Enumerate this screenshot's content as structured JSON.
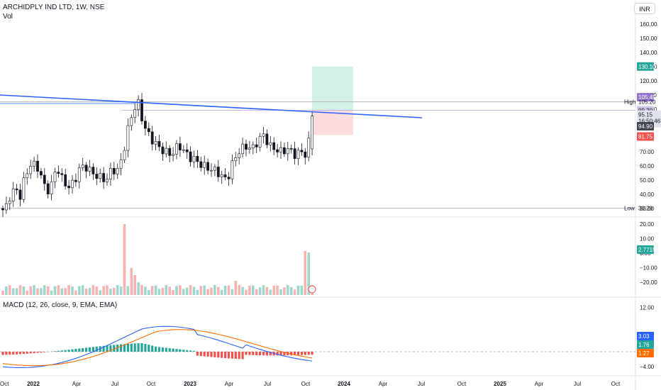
{
  "header": {
    "title": "ARCHIDPLY IND LTD, 1W, NSE",
    "vol_label": "Vol",
    "currency_button": "INR"
  },
  "macd": {
    "label": "MACD (12, 26, close, 9, EMA, EMA)"
  },
  "price_axis": {
    "ticks": [
      "160.00",
      "150.00",
      "140.00",
      "130.00",
      "120.00",
      "110.00",
      "100.00",
      "90.00",
      "80.00",
      "70.00",
      "60.00",
      "50.00",
      "40.00",
      "30.00"
    ]
  },
  "volume_axis": {
    "ticks": [
      "20.00",
      "10.00",
      "0.00",
      "−10.00",
      "−20.00"
    ]
  },
  "macd_axis": {
    "ticks": [
      "12.00",
      "8.00",
      "4.00",
      "0.00",
      "−4.00"
    ]
  },
  "time_axis": {
    "ticks": [
      "Oct",
      "2022",
      "Apr",
      "Jul",
      "Oct",
      "2023",
      "Apr",
      "Jul",
      "Oct",
      "2024",
      "Apr",
      "Jul",
      "Oct",
      "2025",
      "Apr",
      "Jul",
      "Oct"
    ]
  },
  "labels": {
    "high_text": "High",
    "low_text": "Low",
    "target": "130.10",
    "high_value": "105.45",
    "high_line": "105.20",
    "entry": "99.20",
    "last_price": "95.15",
    "countdown": "16:50:46",
    "prev_close": "94.90",
    "stop": "81.75",
    "low_value": "30.20",
    "volume_value": "2.771M",
    "macd_value": "3.03",
    "signal_value": "1.76",
    "histogram_value": "1.27"
  },
  "colors": {
    "bull": "#26a69a",
    "bear": "#ef5350",
    "trendline": "#2962ff",
    "macd_line": "#2962ff",
    "signal_line": "#ff6d00",
    "target_zone": "#d4f1e8",
    "stop_zone": "#fcdcdd",
    "candle": "#131722"
  }
}
